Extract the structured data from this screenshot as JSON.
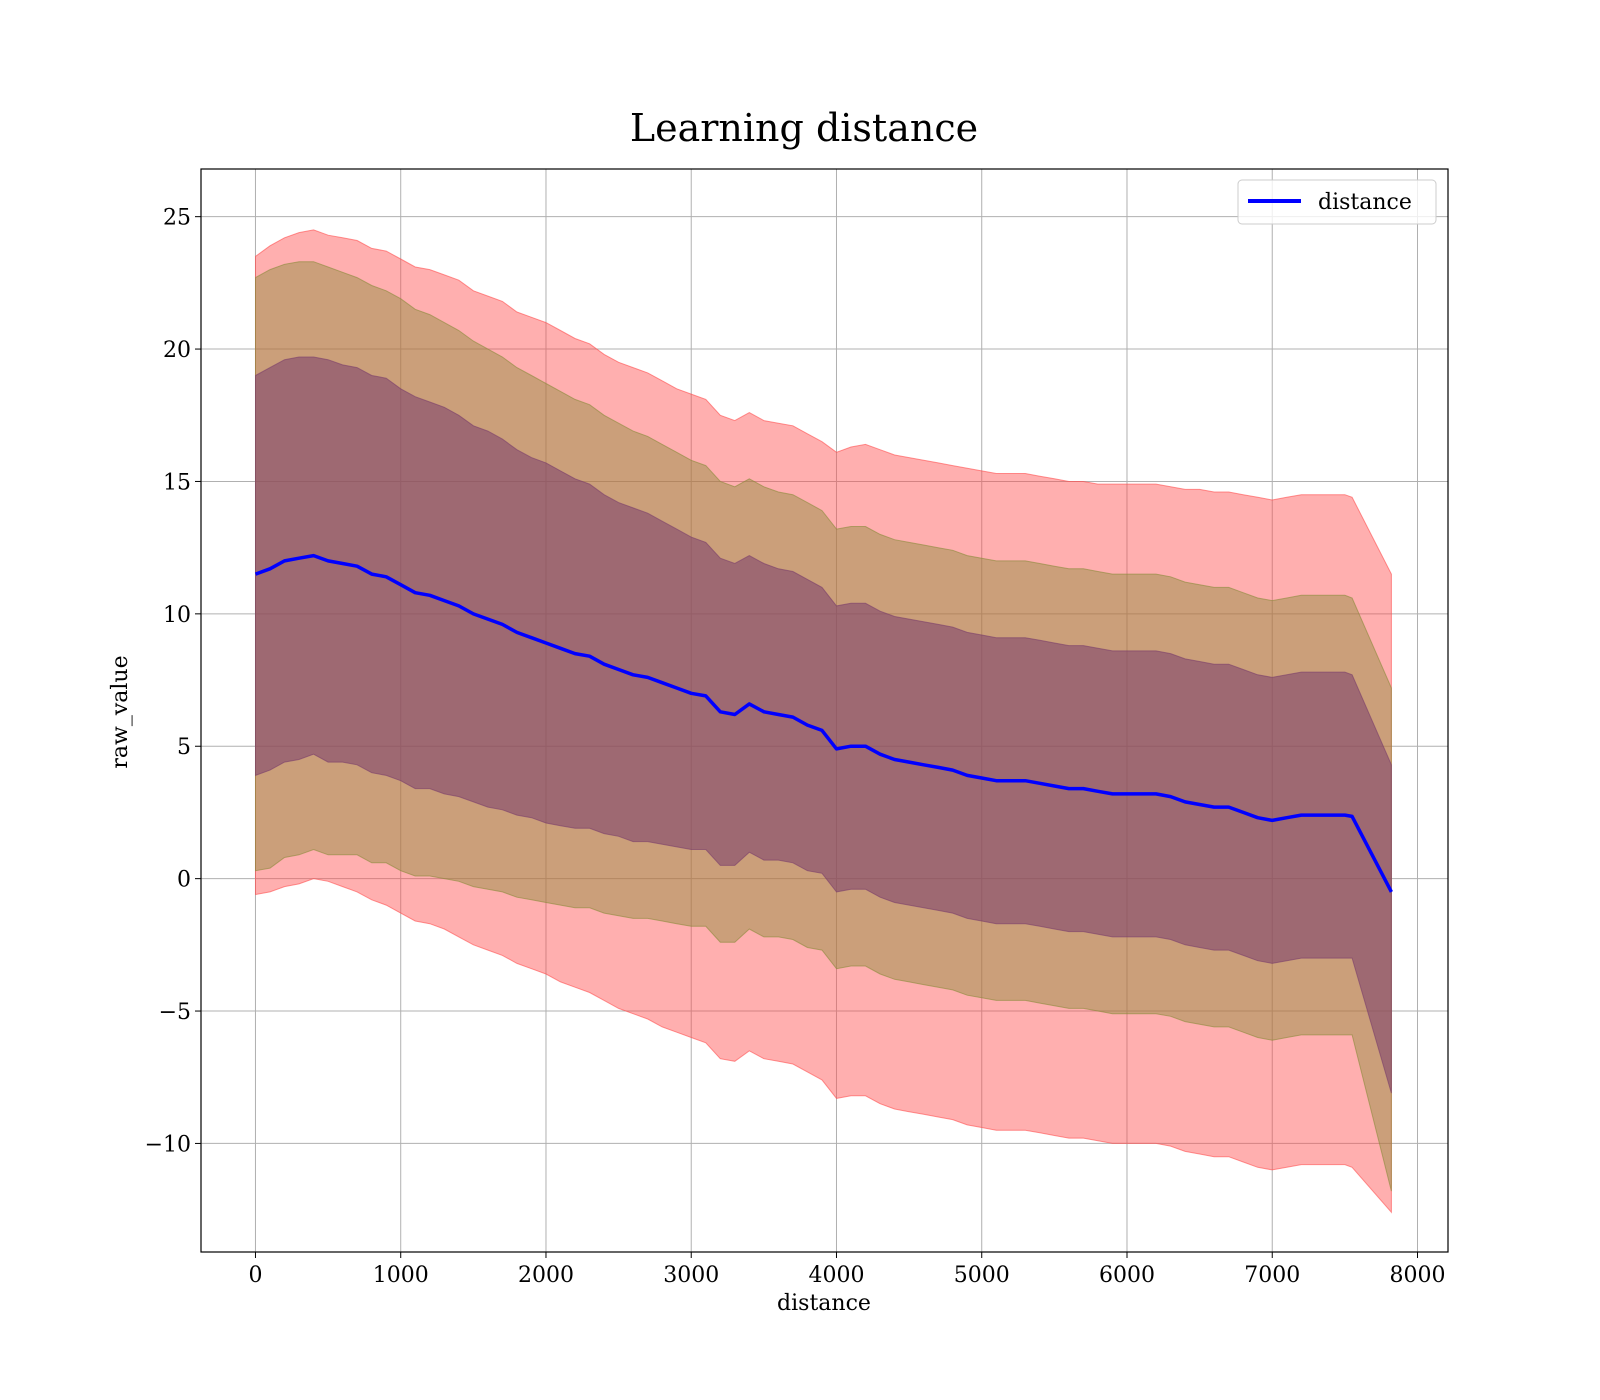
{
  "chart_data": {
    "type": "line",
    "title": "Learning distance",
    "xlabel": "distance",
    "ylabel": "raw_value",
    "xlim": [
      -375,
      8210
    ],
    "ylim": [
      -14.1,
      26.8
    ],
    "xticks": [
      0,
      1000,
      2000,
      3000,
      4000,
      5000,
      6000,
      7000,
      8000
    ],
    "yticks": [
      -10,
      -5,
      0,
      5,
      10,
      15,
      20,
      25
    ],
    "xtick_labels": [
      "0",
      "1000",
      "2000",
      "3000",
      "4000",
      "5000",
      "6000",
      "7000",
      "8000"
    ],
    "ytick_labels": [
      "−10",
      "−5",
      "0",
      "5",
      "10",
      "15",
      "20",
      "25"
    ],
    "grid": true,
    "legend": {
      "position": "top-right",
      "entries": [
        "distance"
      ]
    },
    "colors": {
      "line": "#0000ff",
      "band_outer": "#ff4d4d",
      "band_middle": "#8b8b3a",
      "band_inner": "#7a3d6b"
    },
    "series": [
      {
        "name": "distance",
        "style": "line",
        "x": [
          0,
          100,
          200,
          300,
          400,
          500,
          600,
          700,
          800,
          900,
          1000,
          1100,
          1200,
          1300,
          1400,
          1500,
          1600,
          1700,
          1800,
          1900,
          2000,
          2100,
          2200,
          2300,
          2400,
          2500,
          2600,
          2700,
          2800,
          2900,
          3000,
          3100,
          3200,
          3300,
          3400,
          3500,
          3600,
          3700,
          3800,
          3900,
          4000,
          4100,
          4200,
          4300,
          4400,
          4500,
          4600,
          4700,
          4800,
          4900,
          5000,
          5100,
          5200,
          5300,
          5400,
          5500,
          5600,
          5700,
          5800,
          5900,
          6000,
          6100,
          6200,
          6300,
          6400,
          6500,
          6600,
          6700,
          6800,
          6900,
          7000,
          7100,
          7200,
          7300,
          7400,
          7500,
          7550,
          7820
        ],
        "y": [
          11.5,
          11.7,
          12.0,
          12.1,
          12.2,
          12.0,
          11.9,
          11.8,
          11.5,
          11.4,
          11.1,
          10.8,
          10.7,
          10.5,
          10.3,
          10.0,
          9.8,
          9.6,
          9.3,
          9.1,
          8.9,
          8.7,
          8.5,
          8.4,
          8.1,
          7.9,
          7.7,
          7.6,
          7.4,
          7.2,
          7.0,
          6.9,
          6.3,
          6.2,
          6.6,
          6.3,
          6.2,
          6.1,
          5.8,
          5.6,
          4.9,
          5.0,
          5.0,
          4.7,
          4.5,
          4.4,
          4.3,
          4.2,
          4.1,
          3.9,
          3.8,
          3.7,
          3.7,
          3.7,
          3.6,
          3.5,
          3.4,
          3.4,
          3.3,
          3.2,
          3.2,
          3.2,
          3.2,
          3.1,
          2.9,
          2.8,
          2.7,
          2.7,
          2.5,
          2.3,
          2.2,
          2.3,
          2.4,
          2.4,
          2.4,
          2.4,
          2.35,
          -0.5
        ]
      },
      {
        "name": "band_outer",
        "style": "band",
        "x": [
          0,
          100,
          200,
          300,
          400,
          500,
          600,
          700,
          800,
          900,
          1000,
          1100,
          1200,
          1300,
          1400,
          1500,
          1600,
          1700,
          1800,
          1900,
          2000,
          2100,
          2200,
          2300,
          2400,
          2500,
          2600,
          2700,
          2800,
          2900,
          3000,
          3100,
          3200,
          3300,
          3400,
          3500,
          3600,
          3700,
          3800,
          3900,
          4000,
          4100,
          4200,
          4300,
          4400,
          4500,
          4600,
          4700,
          4800,
          4900,
          5000,
          5100,
          5200,
          5300,
          5400,
          5500,
          5600,
          5700,
          5800,
          5900,
          6000,
          6100,
          6200,
          6300,
          6400,
          6500,
          6600,
          6700,
          6800,
          6900,
          7000,
          7100,
          7200,
          7300,
          7400,
          7500,
          7550,
          7820
        ],
        "upper": [
          23.5,
          23.9,
          24.2,
          24.4,
          24.5,
          24.3,
          24.2,
          24.1,
          23.8,
          23.7,
          23.4,
          23.1,
          23.0,
          22.8,
          22.6,
          22.2,
          22.0,
          21.8,
          21.4,
          21.2,
          21.0,
          20.7,
          20.4,
          20.2,
          19.8,
          19.5,
          19.3,
          19.1,
          18.8,
          18.5,
          18.3,
          18.1,
          17.5,
          17.3,
          17.6,
          17.3,
          17.2,
          17.1,
          16.8,
          16.5,
          16.1,
          16.3,
          16.4,
          16.2,
          16.0,
          15.9,
          15.8,
          15.7,
          15.6,
          15.5,
          15.4,
          15.3,
          15.3,
          15.3,
          15.2,
          15.1,
          15.0,
          15.0,
          14.9,
          14.9,
          14.9,
          14.9,
          14.9,
          14.8,
          14.7,
          14.7,
          14.6,
          14.6,
          14.5,
          14.4,
          14.3,
          14.4,
          14.5,
          14.5,
          14.5,
          14.5,
          14.4,
          11.5
        ],
        "lower": [
          -0.6,
          -0.5,
          -0.3,
          -0.2,
          0.0,
          -0.1,
          -0.3,
          -0.5,
          -0.8,
          -1.0,
          -1.3,
          -1.6,
          -1.7,
          -1.9,
          -2.2,
          -2.5,
          -2.7,
          -2.9,
          -3.2,
          -3.4,
          -3.6,
          -3.9,
          -4.1,
          -4.3,
          -4.6,
          -4.9,
          -5.1,
          -5.3,
          -5.6,
          -5.8,
          -6.0,
          -6.2,
          -6.8,
          -6.9,
          -6.5,
          -6.8,
          -6.9,
          -7.0,
          -7.3,
          -7.6,
          -8.3,
          -8.2,
          -8.2,
          -8.5,
          -8.7,
          -8.8,
          -8.9,
          -9.0,
          -9.1,
          -9.3,
          -9.4,
          -9.5,
          -9.5,
          -9.5,
          -9.6,
          -9.7,
          -9.8,
          -9.8,
          -9.9,
          -10.0,
          -10.0,
          -10.0,
          -10.0,
          -10.1,
          -10.3,
          -10.4,
          -10.5,
          -10.5,
          -10.7,
          -10.9,
          -11.0,
          -10.9,
          -10.8,
          -10.8,
          -10.8,
          -10.8,
          -10.9,
          -12.6
        ]
      },
      {
        "name": "band_middle",
        "style": "band",
        "x": [
          0,
          100,
          200,
          300,
          400,
          500,
          600,
          700,
          800,
          900,
          1000,
          1100,
          1200,
          1300,
          1400,
          1500,
          1600,
          1700,
          1800,
          1900,
          2000,
          2100,
          2200,
          2300,
          2400,
          2500,
          2600,
          2700,
          2800,
          2900,
          3000,
          3100,
          3200,
          3300,
          3400,
          3500,
          3600,
          3700,
          3800,
          3900,
          4000,
          4100,
          4200,
          4300,
          4400,
          4500,
          4600,
          4700,
          4800,
          4900,
          5000,
          5100,
          5200,
          5300,
          5400,
          5500,
          5600,
          5700,
          5800,
          5900,
          6000,
          6100,
          6200,
          6300,
          6400,
          6500,
          6600,
          6700,
          6800,
          6900,
          7000,
          7100,
          7200,
          7300,
          7400,
          7500,
          7550,
          7820
        ],
        "upper": [
          22.7,
          23.0,
          23.2,
          23.3,
          23.3,
          23.1,
          22.9,
          22.7,
          22.4,
          22.2,
          21.9,
          21.5,
          21.3,
          21.0,
          20.7,
          20.3,
          20.0,
          19.7,
          19.3,
          19.0,
          18.7,
          18.4,
          18.1,
          17.9,
          17.5,
          17.2,
          16.9,
          16.7,
          16.4,
          16.1,
          15.8,
          15.6,
          15.0,
          14.8,
          15.1,
          14.8,
          14.6,
          14.5,
          14.2,
          13.9,
          13.2,
          13.3,
          13.3,
          13.0,
          12.8,
          12.7,
          12.6,
          12.5,
          12.4,
          12.2,
          12.1,
          12.0,
          12.0,
          12.0,
          11.9,
          11.8,
          11.7,
          11.7,
          11.6,
          11.5,
          11.5,
          11.5,
          11.5,
          11.4,
          11.2,
          11.1,
          11.0,
          11.0,
          10.8,
          10.6,
          10.5,
          10.6,
          10.7,
          10.7,
          10.7,
          10.7,
          10.6,
          7.2
        ],
        "lower": [
          0.3,
          0.4,
          0.8,
          0.9,
          1.1,
          0.9,
          0.9,
          0.9,
          0.6,
          0.6,
          0.3,
          0.1,
          0.1,
          0.0,
          -0.1,
          -0.3,
          -0.4,
          -0.5,
          -0.7,
          -0.8,
          -0.9,
          -1.0,
          -1.1,
          -1.1,
          -1.3,
          -1.4,
          -1.5,
          -1.5,
          -1.6,
          -1.7,
          -1.8,
          -1.8,
          -2.4,
          -2.4,
          -1.9,
          -2.2,
          -2.2,
          -2.3,
          -2.6,
          -2.7,
          -3.4,
          -3.3,
          -3.3,
          -3.6,
          -3.8,
          -3.9,
          -4.0,
          -4.1,
          -4.2,
          -4.4,
          -4.5,
          -4.6,
          -4.6,
          -4.6,
          -4.7,
          -4.8,
          -4.9,
          -4.9,
          -5.0,
          -5.1,
          -5.1,
          -5.1,
          -5.1,
          -5.2,
          -5.4,
          -5.5,
          -5.6,
          -5.6,
          -5.8,
          -6.0,
          -6.1,
          -6.0,
          -5.9,
          -5.9,
          -5.9,
          -5.9,
          -5.9,
          -11.8
        ]
      },
      {
        "name": "band_inner",
        "style": "band",
        "x": [
          0,
          100,
          200,
          300,
          400,
          500,
          600,
          700,
          800,
          900,
          1000,
          1100,
          1200,
          1300,
          1400,
          1500,
          1600,
          1700,
          1800,
          1900,
          2000,
          2100,
          2200,
          2300,
          2400,
          2500,
          2600,
          2700,
          2800,
          2900,
          3000,
          3100,
          3200,
          3300,
          3400,
          3500,
          3600,
          3700,
          3800,
          3900,
          4000,
          4100,
          4200,
          4300,
          4400,
          4500,
          4600,
          4700,
          4800,
          4900,
          5000,
          5100,
          5200,
          5300,
          5400,
          5500,
          5600,
          5700,
          5800,
          5900,
          6000,
          6100,
          6200,
          6300,
          6400,
          6500,
          6600,
          6700,
          6800,
          6900,
          7000,
          7100,
          7200,
          7300,
          7400,
          7500,
          7550,
          7820
        ],
        "upper": [
          19.0,
          19.3,
          19.6,
          19.7,
          19.7,
          19.6,
          19.4,
          19.3,
          19.0,
          18.9,
          18.5,
          18.2,
          18.0,
          17.8,
          17.5,
          17.1,
          16.9,
          16.6,
          16.2,
          15.9,
          15.7,
          15.4,
          15.1,
          14.9,
          14.5,
          14.2,
          14.0,
          13.8,
          13.5,
          13.2,
          12.9,
          12.7,
          12.1,
          11.9,
          12.2,
          11.9,
          11.7,
          11.6,
          11.3,
          11.0,
          10.3,
          10.4,
          10.4,
          10.1,
          9.9,
          9.8,
          9.7,
          9.6,
          9.5,
          9.3,
          9.2,
          9.1,
          9.1,
          9.1,
          9.0,
          8.9,
          8.8,
          8.8,
          8.7,
          8.6,
          8.6,
          8.6,
          8.6,
          8.5,
          8.3,
          8.2,
          8.1,
          8.1,
          7.9,
          7.7,
          7.6,
          7.7,
          7.8,
          7.8,
          7.8,
          7.8,
          7.7,
          4.3
        ],
        "lower": [
          3.9,
          4.1,
          4.4,
          4.5,
          4.7,
          4.4,
          4.4,
          4.3,
          4.0,
          3.9,
          3.7,
          3.4,
          3.4,
          3.2,
          3.1,
          2.9,
          2.7,
          2.6,
          2.4,
          2.3,
          2.1,
          2.0,
          1.9,
          1.9,
          1.7,
          1.6,
          1.4,
          1.4,
          1.3,
          1.2,
          1.1,
          1.1,
          0.5,
          0.5,
          1.0,
          0.7,
          0.7,
          0.6,
          0.3,
          0.2,
          -0.5,
          -0.4,
          -0.4,
          -0.7,
          -0.9,
          -1.0,
          -1.1,
          -1.2,
          -1.3,
          -1.5,
          -1.6,
          -1.7,
          -1.7,
          -1.7,
          -1.8,
          -1.9,
          -2.0,
          -2.0,
          -2.1,
          -2.2,
          -2.2,
          -2.2,
          -2.2,
          -2.3,
          -2.5,
          -2.6,
          -2.7,
          -2.7,
          -2.9,
          -3.1,
          -3.2,
          -3.1,
          -3.0,
          -3.0,
          -3.0,
          -3.0,
          -3.0,
          -8.1
        ]
      }
    ]
  }
}
